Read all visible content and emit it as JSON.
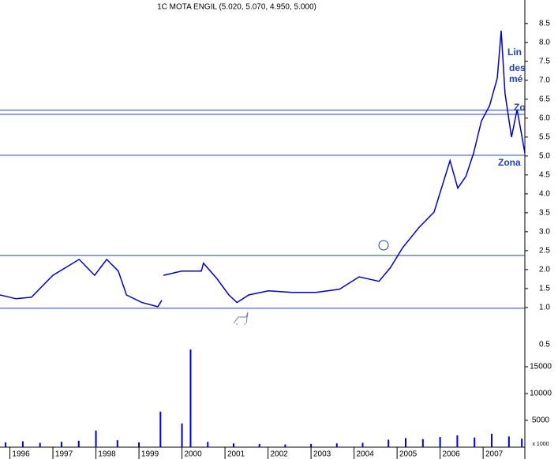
{
  "chart_data": {
    "type": "line",
    "title": "1C MOTA ENGIL (5.020, 5.070, 4.950, 5.000)",
    "x": [
      1995.77,
      1996.14,
      1996.5,
      1997.0,
      1997.61,
      1997.97,
      1998.25,
      1998.52,
      1998.71,
      1999.07,
      1999.44,
      1999.53,
      1999.55,
      1999.57,
      1999.99,
      2000.45,
      2000.5,
      2000.82,
      2001.09,
      2001.28,
      2001.55,
      2002.01,
      2002.56,
      2003.11,
      2003.66,
      2004.12,
      2004.58,
      2004.85,
      2005.13,
      2005.5,
      2005.86,
      2006.23,
      2006.41,
      2006.6,
      2006.78,
      2006.96,
      2007.15,
      2007.33,
      2007.42,
      2007.51,
      2007.66,
      2007.79,
      2007.97
    ],
    "series": [
      {
        "color": "#0000cc",
        "values": [
          1.33,
          1.23,
          1.27,
          1.85,
          2.27,
          1.85,
          2.27,
          1.96,
          1.33,
          1.13,
          1.02,
          1.19,
          null,
          1.85,
          1.96,
          1.96,
          2.17,
          1.75,
          1.33,
          1.13,
          1.33,
          1.44,
          1.4,
          1.4,
          1.48,
          1.81,
          1.69,
          2.06,
          2.58,
          3.1,
          3.52,
          4.88,
          4.15,
          4.46,
          5.08,
          5.92,
          6.33,
          7.06,
          8.31,
          6.65,
          5.5,
          6.23,
          5.08
        ]
      }
    ],
    "xlim": [
      1995.77,
      2007.97
    ],
    "xticks": [
      1996,
      1997,
      1998,
      1999,
      2000,
      2001,
      2002,
      2003,
      2004,
      2005,
      2006,
      2007
    ],
    "ylim": [
      0.81,
      9.12
    ],
    "yticks": [
      {
        "value": 1,
        "label": "1.0"
      },
      1.5,
      {
        "value": 2,
        "label": "2.0"
      },
      2.5,
      {
        "value": 3,
        "label": "3.0"
      },
      3.5,
      {
        "value": 4,
        "label": "4.0"
      },
      4.5,
      {
        "value": 5,
        "label": "5.0"
      },
      5.5,
      {
        "value": 6,
        "label": "6.0"
      },
      6.5,
      {
        "value": 7,
        "label": "7.0"
      },
      7.5,
      {
        "value": 8,
        "label": "8.0"
      },
      8.5
    ],
    "lower_tick_label": "0.5",
    "levels": [
      6.21,
      6.1,
      5.02,
      2.375,
      0.98
    ],
    "annotations": [
      "Lin",
      "des",
      "mé",
      "Zo",
      "Zona"
    ],
    "volume": {
      "color": "#0000cc",
      "unit_label": "x 1000",
      "x": [
        1995.9,
        1996.3,
        1996.7,
        1997.2,
        1997.6,
        1998.0,
        1998.5,
        1999.0,
        1999.5,
        2000.0,
        2000.2,
        2000.6,
        2001.2,
        2001.8,
        2002.4,
        2003.0,
        2003.6,
        2004.2,
        2004.8,
        2005.2,
        2005.6,
        2006.0,
        2006.4,
        2006.8,
        2007.2,
        2007.6,
        2007.9
      ],
      "values": [
        900,
        1100,
        800,
        1000,
        1200,
        3100,
        1300,
        900,
        6600,
        4400,
        18200,
        1000,
        700,
        600,
        500,
        600,
        700,
        800,
        1400,
        1700,
        1500,
        1900,
        2200,
        1800,
        2500,
        2000,
        1600
      ],
      "ylim": [
        0,
        20000
      ],
      "yticks": [
        5000,
        10000,
        15000
      ]
    }
  }
}
